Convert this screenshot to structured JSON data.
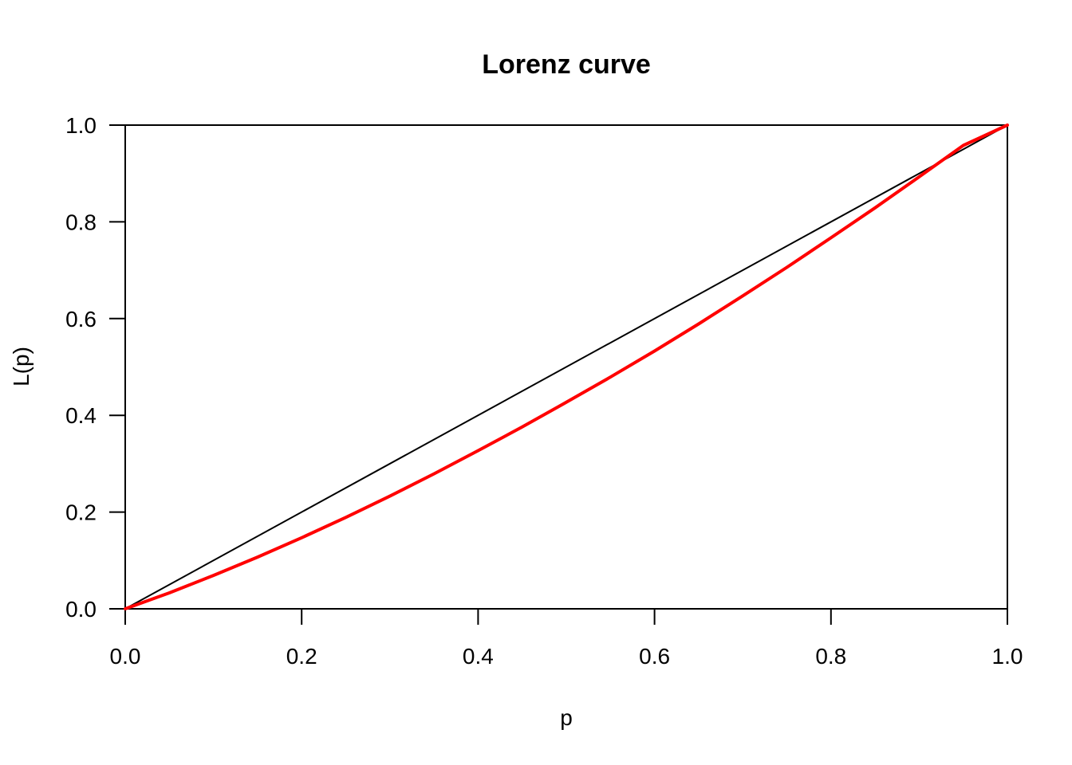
{
  "chart_data": {
    "type": "line",
    "title": "Lorenz curve",
    "xlabel": "p",
    "ylabel": "L(p)",
    "xlim": [
      0,
      1
    ],
    "ylim": [
      0,
      1
    ],
    "x_ticks": [
      "0.0",
      "0.2",
      "0.4",
      "0.6",
      "0.8",
      "1.0"
    ],
    "y_ticks": [
      "0.0",
      "0.2",
      "0.4",
      "0.6",
      "0.8",
      "1.0"
    ],
    "grid": false,
    "legend": "none",
    "series": [
      {
        "color": "#000000",
        "x": [
          0,
          1
        ],
        "y": [
          0,
          1
        ]
      },
      {
        "color": "#ff0000",
        "x": [
          0,
          0.05,
          0.1,
          0.15,
          0.2,
          0.25,
          0.3,
          0.35,
          0.4,
          0.45,
          0.5,
          0.55,
          0.6,
          0.65,
          0.7,
          0.75,
          0.8,
          0.85,
          0.9,
          0.95,
          1.0
        ],
        "y": [
          0,
          0.033,
          0.069,
          0.107,
          0.147,
          0.189,
          0.233,
          0.279,
          0.327,
          0.376,
          0.427,
          0.479,
          0.533,
          0.589,
          0.647,
          0.706,
          0.767,
          0.829,
          0.893,
          0.958,
          1.0
        ]
      }
    ]
  }
}
